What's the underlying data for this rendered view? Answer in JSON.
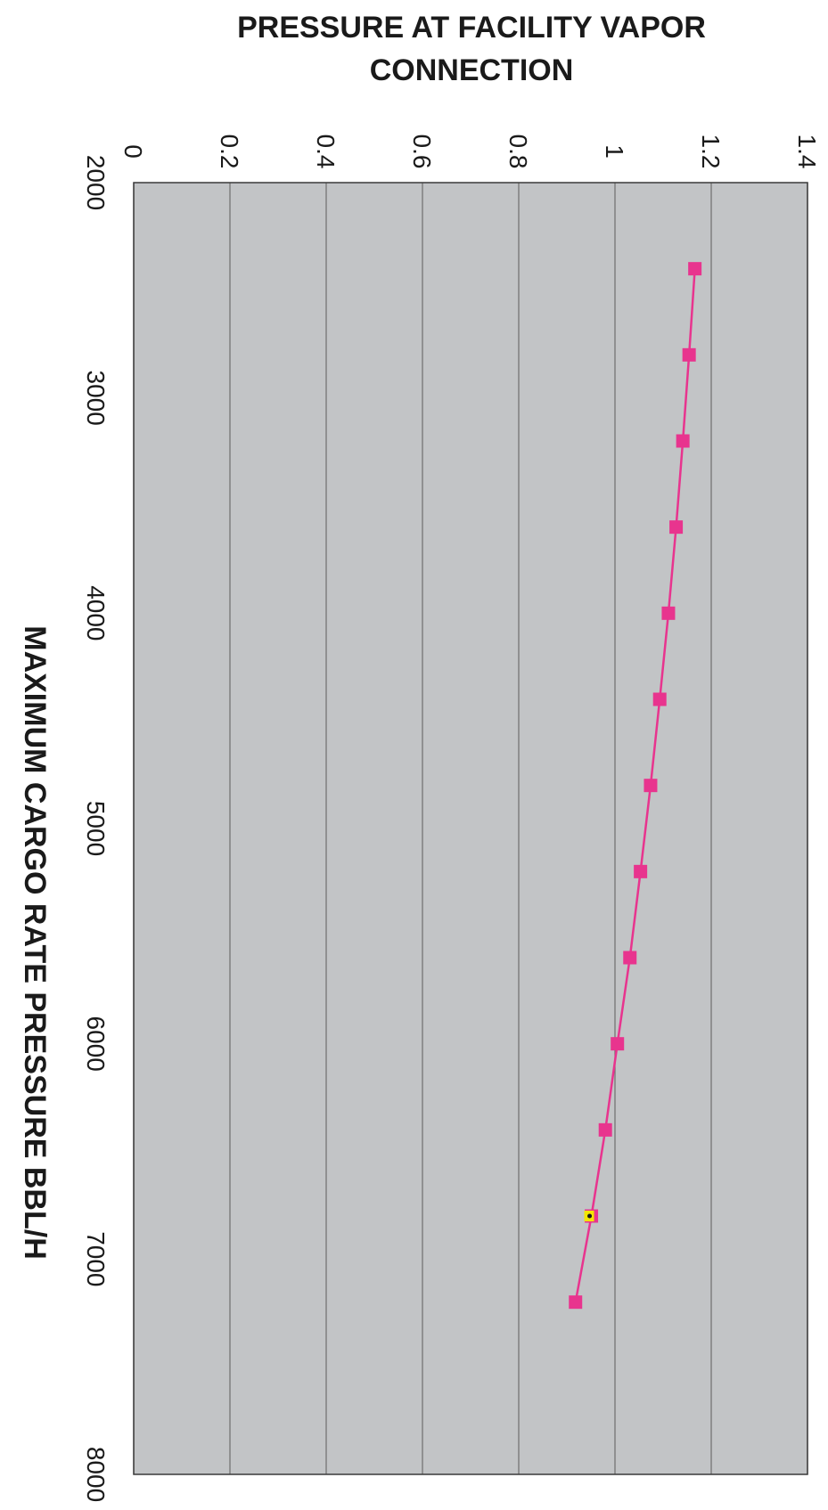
{
  "chart_data": {
    "type": "line",
    "title_lines": [
      "PRESSURE AT FACILITY VAPOR",
      "CONNECTION"
    ],
    "xlabel": "MAXIMUM CARGO RATE PRESSURE BBL/H",
    "ylabel": "",
    "xlim": [
      2000,
      8000
    ],
    "ylim": [
      0,
      1.4
    ],
    "x_ticks": [
      "2000",
      "3000",
      "4000",
      "5000",
      "6000",
      "7000",
      "8000"
    ],
    "y_ticks": [
      "0",
      "0.2",
      "0.4",
      "0.6",
      "0.8",
      "1",
      "1.2",
      "1.4"
    ],
    "grid": true,
    "orientation": "rotated-90-clockwise",
    "colors": {
      "series": "#e8348e",
      "highlight": "#f2e600",
      "plot_bg": "#c2c4c6",
      "grid": "#6e6e6e"
    },
    "series": [
      {
        "x": [
          2400,
          2800,
          3200,
          3600,
          4000,
          4400,
          4800,
          5200,
          5600,
          6000,
          6400,
          6800,
          7200
        ],
        "y": [
          1.166,
          1.154,
          1.141,
          1.127,
          1.111,
          1.093,
          1.074,
          1.053,
          1.031,
          1.005,
          0.98,
          0.951,
          0.918
        ]
      }
    ],
    "highlight_point": {
      "x": 6800,
      "y": 0.951
    }
  }
}
